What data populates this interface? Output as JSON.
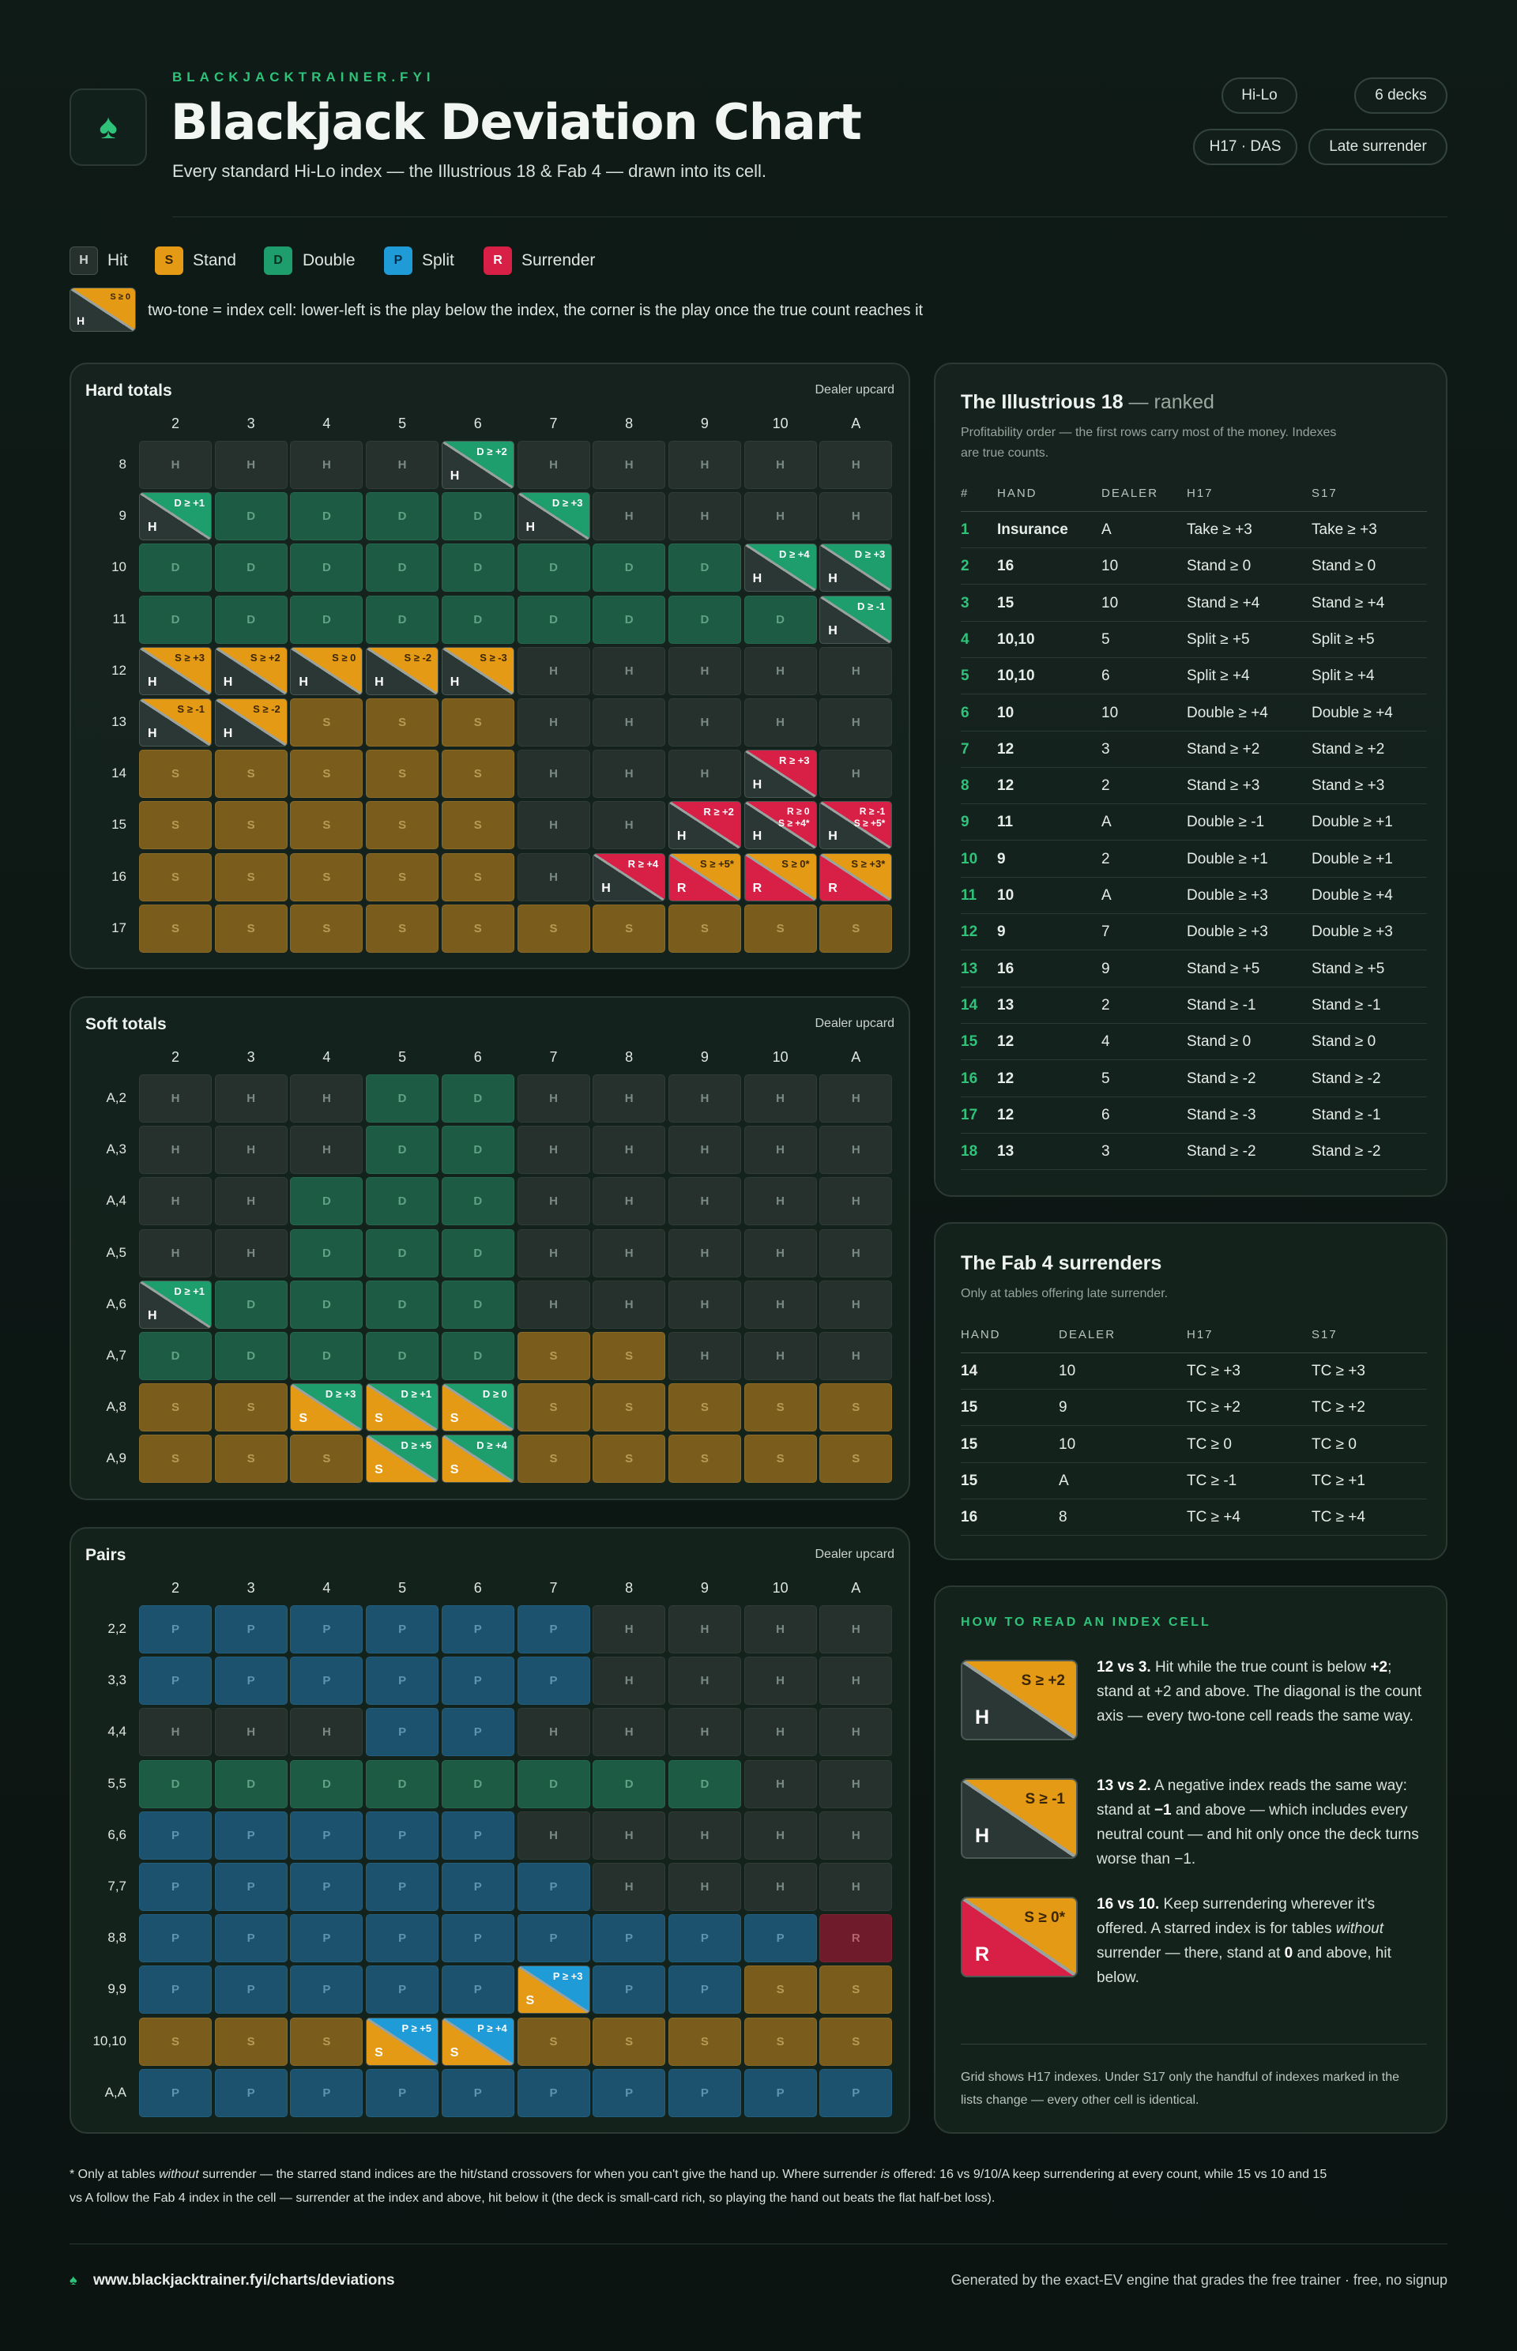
{
  "header": {
    "kicker": "BLACKJACKTRAINER.FYI",
    "title": "Blackjack Deviation Chart",
    "subtitle": "Every standard Hi-Lo index — the Illustrious 18 & Fab 4 — drawn into its cell.",
    "chips": [
      "Hi-Lo",
      "6 decks",
      "H17 · DAS",
      "Late surrender"
    ]
  },
  "legend": {
    "items": [
      {
        "code": "H",
        "label": "Hit"
      },
      {
        "code": "S",
        "label": "Stand"
      },
      {
        "code": "D",
        "label": "Double"
      },
      {
        "code": "P",
        "label": "Split"
      },
      {
        "code": "R",
        "label": "Surrender"
      }
    ],
    "example_low": "H",
    "example_high": "S ≥ 0",
    "note": "two-tone = index cell: lower-left is the play below the index, the corner is the play once the true count reaches it"
  },
  "colors": {
    "H": "#26312e",
    "S": "#7a5c1c",
    "D": "#1d5b45",
    "P": "#1c526e",
    "R": "#6f1b2b",
    "H_bright": "#2b3734",
    "S_bright": "#e59a16",
    "D_bright": "#1e9e6d",
    "P_bright": "#1f9bd8",
    "R_bright": "#d81f45",
    "accent": "#2fc37a"
  },
  "chart_data": [
    {
      "type": "table",
      "title": "Hard totals",
      "caption": "Dealer upcard",
      "columns": [
        "2",
        "3",
        "4",
        "5",
        "6",
        "7",
        "8",
        "9",
        "10",
        "A"
      ],
      "rows": [
        {
          "label": "8",
          "cells": [
            "H",
            "H",
            "H",
            "H",
            "H|D ≥ +2",
            "H",
            "H",
            "H",
            "H",
            "H"
          ]
        },
        {
          "label": "9",
          "cells": [
            "H|D ≥ +1",
            "D",
            "D",
            "D",
            "D",
            "H|D ≥ +3",
            "H",
            "H",
            "H",
            "H"
          ]
        },
        {
          "label": "10",
          "cells": [
            "D",
            "D",
            "D",
            "D",
            "D",
            "D",
            "D",
            "D",
            "H|D ≥ +4",
            "H|D ≥ +3"
          ]
        },
        {
          "label": "11",
          "cells": [
            "D",
            "D",
            "D",
            "D",
            "D",
            "D",
            "D",
            "D",
            "D",
            "H|D ≥ -1"
          ]
        },
        {
          "label": "12",
          "cells": [
            "H|S ≥ +3",
            "H|S ≥ +2",
            "H|S ≥ 0",
            "H|S ≥ -2",
            "H|S ≥ -3",
            "H",
            "H",
            "H",
            "H",
            "H"
          ]
        },
        {
          "label": "13",
          "cells": [
            "H|S ≥ -1",
            "H|S ≥ -2",
            "S",
            "S",
            "S",
            "H",
            "H",
            "H",
            "H",
            "H"
          ]
        },
        {
          "label": "14",
          "cells": [
            "S",
            "S",
            "S",
            "S",
            "S",
            "H",
            "H",
            "H",
            "H|R ≥ +3",
            "H"
          ]
        },
        {
          "label": "15",
          "cells": [
            "S",
            "S",
            "S",
            "S",
            "S",
            "H",
            "H",
            "H|R ≥ +2",
            "H|R ≥ 0 S ≥ +4*",
            "H|R ≥ -1 S ≥ +5*"
          ]
        },
        {
          "label": "16",
          "cells": [
            "S",
            "S",
            "S",
            "S",
            "S",
            "H",
            "H|R ≥ +4",
            "R|S ≥ +5*",
            "R|S ≥ 0*",
            "R|S ≥ +3*"
          ]
        },
        {
          "label": "17",
          "cells": [
            "S",
            "S",
            "S",
            "S",
            "S",
            "S",
            "S",
            "S",
            "S",
            "S"
          ]
        }
      ]
    },
    {
      "type": "table",
      "title": "Soft totals",
      "caption": "Dealer upcard",
      "columns": [
        "2",
        "3",
        "4",
        "5",
        "6",
        "7",
        "8",
        "9",
        "10",
        "A"
      ],
      "rows": [
        {
          "label": "A,2",
          "cells": [
            "H",
            "H",
            "H",
            "D",
            "D",
            "H",
            "H",
            "H",
            "H",
            "H"
          ]
        },
        {
          "label": "A,3",
          "cells": [
            "H",
            "H",
            "H",
            "D",
            "D",
            "H",
            "H",
            "H",
            "H",
            "H"
          ]
        },
        {
          "label": "A,4",
          "cells": [
            "H",
            "H",
            "D",
            "D",
            "D",
            "H",
            "H",
            "H",
            "H",
            "H"
          ]
        },
        {
          "label": "A,5",
          "cells": [
            "H",
            "H",
            "D",
            "D",
            "D",
            "H",
            "H",
            "H",
            "H",
            "H"
          ]
        },
        {
          "label": "A,6",
          "cells": [
            "H|D ≥ +1",
            "D",
            "D",
            "D",
            "D",
            "H",
            "H",
            "H",
            "H",
            "H"
          ]
        },
        {
          "label": "A,7",
          "cells": [
            "D",
            "D",
            "D",
            "D",
            "D",
            "S",
            "S",
            "H",
            "H",
            "H"
          ]
        },
        {
          "label": "A,8",
          "cells": [
            "S",
            "S",
            "S|D ≥ +3",
            "S|D ≥ +1",
            "S|D ≥ 0",
            "S",
            "S",
            "S",
            "S",
            "S"
          ]
        },
        {
          "label": "A,9",
          "cells": [
            "S",
            "S",
            "S",
            "S|D ≥ +5",
            "S|D ≥ +4",
            "S",
            "S",
            "S",
            "S",
            "S"
          ]
        }
      ]
    },
    {
      "type": "table",
      "title": "Pairs",
      "caption": "Dealer upcard",
      "columns": [
        "2",
        "3",
        "4",
        "5",
        "6",
        "7",
        "8",
        "9",
        "10",
        "A"
      ],
      "rows": [
        {
          "label": "2,2",
          "cells": [
            "P",
            "P",
            "P",
            "P",
            "P",
            "P",
            "H",
            "H",
            "H",
            "H"
          ]
        },
        {
          "label": "3,3",
          "cells": [
            "P",
            "P",
            "P",
            "P",
            "P",
            "P",
            "H",
            "H",
            "H",
            "H"
          ]
        },
        {
          "label": "4,4",
          "cells": [
            "H",
            "H",
            "H",
            "P",
            "P",
            "H",
            "H",
            "H",
            "H",
            "H"
          ]
        },
        {
          "label": "5,5",
          "cells": [
            "D",
            "D",
            "D",
            "D",
            "D",
            "D",
            "D",
            "D",
            "H",
            "H"
          ]
        },
        {
          "label": "6,6",
          "cells": [
            "P",
            "P",
            "P",
            "P",
            "P",
            "H",
            "H",
            "H",
            "H",
            "H"
          ]
        },
        {
          "label": "7,7",
          "cells": [
            "P",
            "P",
            "P",
            "P",
            "P",
            "P",
            "H",
            "H",
            "H",
            "H"
          ]
        },
        {
          "label": "8,8",
          "cells": [
            "P",
            "P",
            "P",
            "P",
            "P",
            "P",
            "P",
            "P",
            "P",
            "R"
          ]
        },
        {
          "label": "9,9",
          "cells": [
            "P",
            "P",
            "P",
            "P",
            "P",
            "S|P ≥ +3",
            "P",
            "P",
            "S",
            "S"
          ]
        },
        {
          "label": "10,10",
          "cells": [
            "S",
            "S",
            "S",
            "S|P ≥ +5",
            "S|P ≥ +4",
            "S",
            "S",
            "S",
            "S",
            "S"
          ]
        },
        {
          "label": "A,A",
          "cells": [
            "P",
            "P",
            "P",
            "P",
            "P",
            "P",
            "P",
            "P",
            "P",
            "P"
          ]
        }
      ]
    }
  ],
  "illustrious": {
    "title": "The Illustrious 18",
    "title_suffix": " — ranked",
    "caption_1": "Profitability order — the first rows carry most of the money. Indexes",
    "caption_2": "are true counts.",
    "headers": [
      "#",
      "HAND",
      "DEALER",
      "H17",
      "S17"
    ],
    "rows": [
      [
        "1",
        "Insurance",
        "A",
        "Take ≥ +3",
        "Take ≥ +3"
      ],
      [
        "2",
        "16",
        "10",
        "Stand ≥ 0",
        "Stand ≥ 0"
      ],
      [
        "3",
        "15",
        "10",
        "Stand ≥ +4",
        "Stand ≥ +4"
      ],
      [
        "4",
        "10,10",
        "5",
        "Split ≥ +5",
        "Split ≥ +5"
      ],
      [
        "5",
        "10,10",
        "6",
        "Split ≥ +4",
        "Split ≥ +4"
      ],
      [
        "6",
        "10",
        "10",
        "Double ≥ +4",
        "Double ≥ +4"
      ],
      [
        "7",
        "12",
        "3",
        "Stand ≥ +2",
        "Stand ≥ +2"
      ],
      [
        "8",
        "12",
        "2",
        "Stand ≥ +3",
        "Stand ≥ +3"
      ],
      [
        "9",
        "11",
        "A",
        "Double ≥ -1",
        "Double ≥ +1"
      ],
      [
        "10",
        "9",
        "2",
        "Double ≥ +1",
        "Double ≥ +1"
      ],
      [
        "11",
        "10",
        "A",
        "Double ≥ +3",
        "Double ≥ +4"
      ],
      [
        "12",
        "9",
        "7",
        "Double ≥ +3",
        "Double ≥ +3"
      ],
      [
        "13",
        "16",
        "9",
        "Stand ≥ +5",
        "Stand ≥ +5"
      ],
      [
        "14",
        "13",
        "2",
        "Stand ≥ -1",
        "Stand ≥ -1"
      ],
      [
        "15",
        "12",
        "4",
        "Stand ≥ 0",
        "Stand ≥ 0"
      ],
      [
        "16",
        "12",
        "5",
        "Stand ≥ -2",
        "Stand ≥ -2"
      ],
      [
        "17",
        "12",
        "6",
        "Stand ≥ -3",
        "Stand ≥ -1"
      ],
      [
        "18",
        "13",
        "3",
        "Stand ≥ -2",
        "Stand ≥ -2"
      ]
    ]
  },
  "fab4": {
    "title": "The Fab 4 surrenders",
    "caption": "Only at tables offering late surrender.",
    "headers": [
      "HAND",
      "DEALER",
      "H17",
      "S17"
    ],
    "rows": [
      [
        "14",
        "10",
        "TC ≥ +3",
        "TC ≥ +3"
      ],
      [
        "15",
        "9",
        "TC ≥ +2",
        "TC ≥ +2"
      ],
      [
        "15",
        "10",
        "TC ≥ 0",
        "TC ≥ 0"
      ],
      [
        "15",
        "A",
        "TC ≥ -1",
        "TC ≥ +1"
      ],
      [
        "16",
        "8",
        "TC ≥ +4",
        "TC ≥ +4"
      ]
    ]
  },
  "how": {
    "title": "HOW TO READ AN INDEX CELL",
    "examples": [
      {
        "low": "H",
        "high": "S ≥ +2",
        "lead": "12 vs 3.",
        "text_1": " Hit while the true count is below ",
        "bold_1": "+2",
        "text_2": "; stand at +2 and above. The diagonal is the count axis — every two-tone cell reads the same way."
      },
      {
        "low": "H",
        "high": "S ≥ -1",
        "lead": "13 vs 2.",
        "text_1": " A negative index reads the same way: stand at ",
        "bold_1": "−1",
        "text_2": " and above — which includes every neutral count — and hit only once the deck turns worse than −1."
      },
      {
        "low": "R",
        "high": "S ≥ 0*",
        "lead": "16 vs 10.",
        "text_1": " Keep surrendering wherever it's offered. A starred index is for tables ",
        "ital_1": "without",
        "text_2": " surrender — there, stand at ",
        "bold_1": "0",
        "text_3": " and above, hit below."
      }
    ],
    "note": "Grid shows H17 indexes. Under S17 only the handful of indexes marked in the lists change — every other cell is identical."
  },
  "footnote": {
    "p1": "* Only at tables ",
    "i1": "without",
    "p2": " surrender — the starred stand indices are the hit/stand crossovers for when you can't give the hand up. Where surrender ",
    "i2": "is",
    "p3": " offered: 16 vs 9/10/A keep surrendering at every count, while 15 vs 10 and 15",
    "line2": "vs A follow the Fab 4 index in the cell — surrender at the index and above, hit below it (the deck is small-card rich, so playing the hand out beats the flat half-bet loss)."
  },
  "footer": {
    "url": "www.blackjacktrainer.fyi/charts/deviations",
    "right": "Generated by the exact-EV engine that grades the free trainer · free, no signup"
  }
}
